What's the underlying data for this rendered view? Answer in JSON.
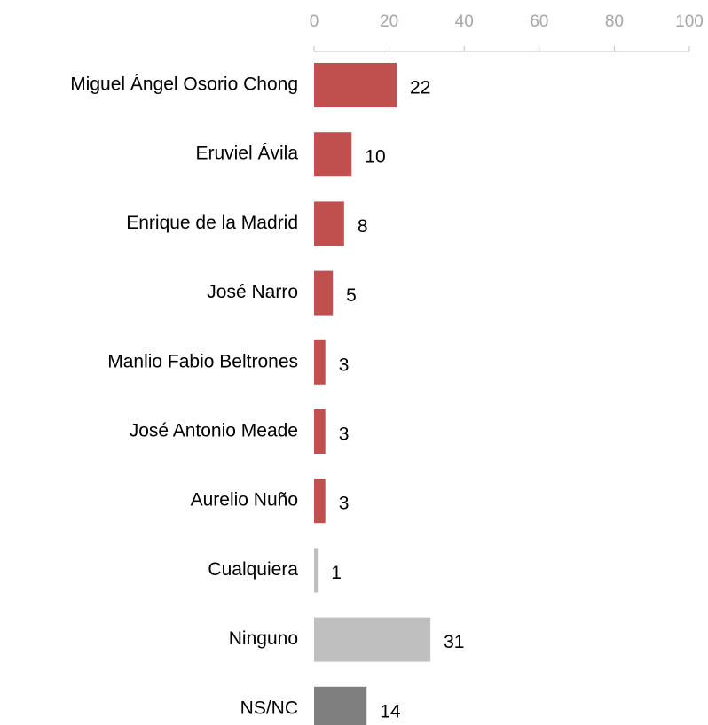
{
  "chart_data": {
    "type": "bar",
    "orientation": "horizontal",
    "categories": [
      "Miguel Ángel Osorio Chong",
      "Eruviel Ávila",
      "Enrique de la Madrid",
      "José Narro",
      "Manlio Fabio Beltrones",
      "José Antonio Meade",
      "Aurelio Nuño",
      "Cualquiera",
      "Ninguno",
      "NS/NC"
    ],
    "values": [
      22,
      10,
      8,
      5,
      3,
      3,
      3,
      1,
      31,
      14
    ],
    "colors": [
      "#c0504d",
      "#c0504d",
      "#c0504d",
      "#c0504d",
      "#c0504d",
      "#c0504d",
      "#c0504d",
      "#bfbfbf",
      "#bfbfbf",
      "#7f7f7f"
    ],
    "xlim": [
      0,
      100
    ],
    "xticks": [
      0,
      20,
      40,
      60,
      80,
      100
    ],
    "grid": false
  }
}
